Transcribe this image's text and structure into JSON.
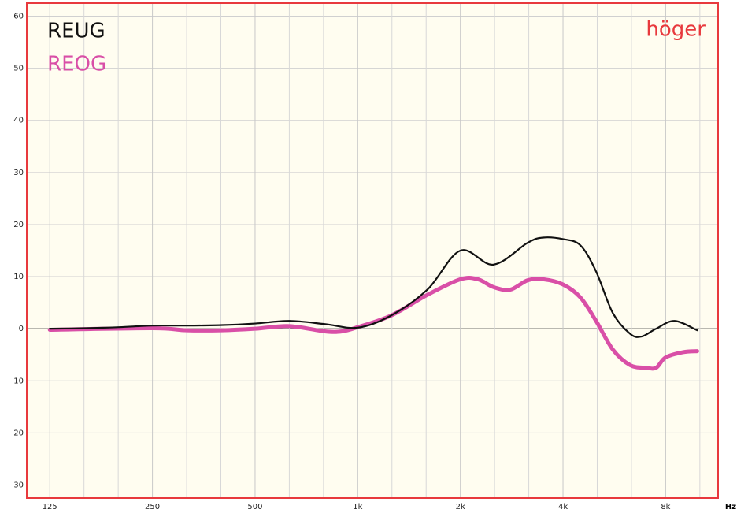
{
  "chart_data": {
    "type": "line",
    "x_label": "Hz",
    "annotation": "höger",
    "xscale": "log",
    "xlim": [
      107,
      11400
    ],
    "xticks": [
      125,
      250,
      500,
      {
        "value": 1000,
        "label": "1k"
      },
      {
        "value": 2000,
        "label": "2k"
      },
      {
        "value": 4000,
        "label": "4k"
      },
      {
        "value": 8000,
        "label": "8k"
      }
    ],
    "ylim": [
      -32.5,
      62.5
    ],
    "yticks": [
      -30,
      -20,
      -10,
      0,
      10,
      20,
      30,
      40,
      50,
      60
    ],
    "grid": true,
    "series": [
      {
        "name": "REUG",
        "color": "#111111",
        "x": [
          125,
          160,
          200,
          250,
          315,
          400,
          500,
          630,
          800,
          1000,
          1250,
          1600,
          2000,
          2500,
          3150,
          3500,
          4000,
          4500,
          5000,
          5600,
          6300,
          6800,
          7500,
          8500,
          9900
        ],
        "values": [
          0,
          0.1,
          0.3,
          0.6,
          0.6,
          0.7,
          1.0,
          1.5,
          0.9,
          0.2,
          2.5,
          7.5,
          15,
          12.3,
          16.5,
          17.5,
          17.2,
          16,
          11,
          3,
          -1,
          -1.5,
          0,
          1.5,
          -0.3
        ]
      },
      {
        "name": "REOG",
        "color": "#d94fa7",
        "x": [
          125,
          250,
          315,
          400,
          500,
          630,
          800,
          900,
          1000,
          1250,
          1600,
          2000,
          2250,
          2500,
          2800,
          3150,
          3500,
          4000,
          4500,
          5000,
          5600,
          6300,
          7000,
          7500,
          8000,
          9000,
          9900
        ],
        "values": [
          -0.2,
          0.1,
          -0.3,
          -0.3,
          0,
          0.5,
          -0.5,
          -0.5,
          0.3,
          2.5,
          6.5,
          9.5,
          9.5,
          8,
          7.5,
          9.3,
          9.5,
          8.5,
          6,
          1.5,
          -4,
          -7,
          -7.5,
          -7.5,
          -5.5,
          -4.5,
          -4.3
        ]
      }
    ]
  }
}
